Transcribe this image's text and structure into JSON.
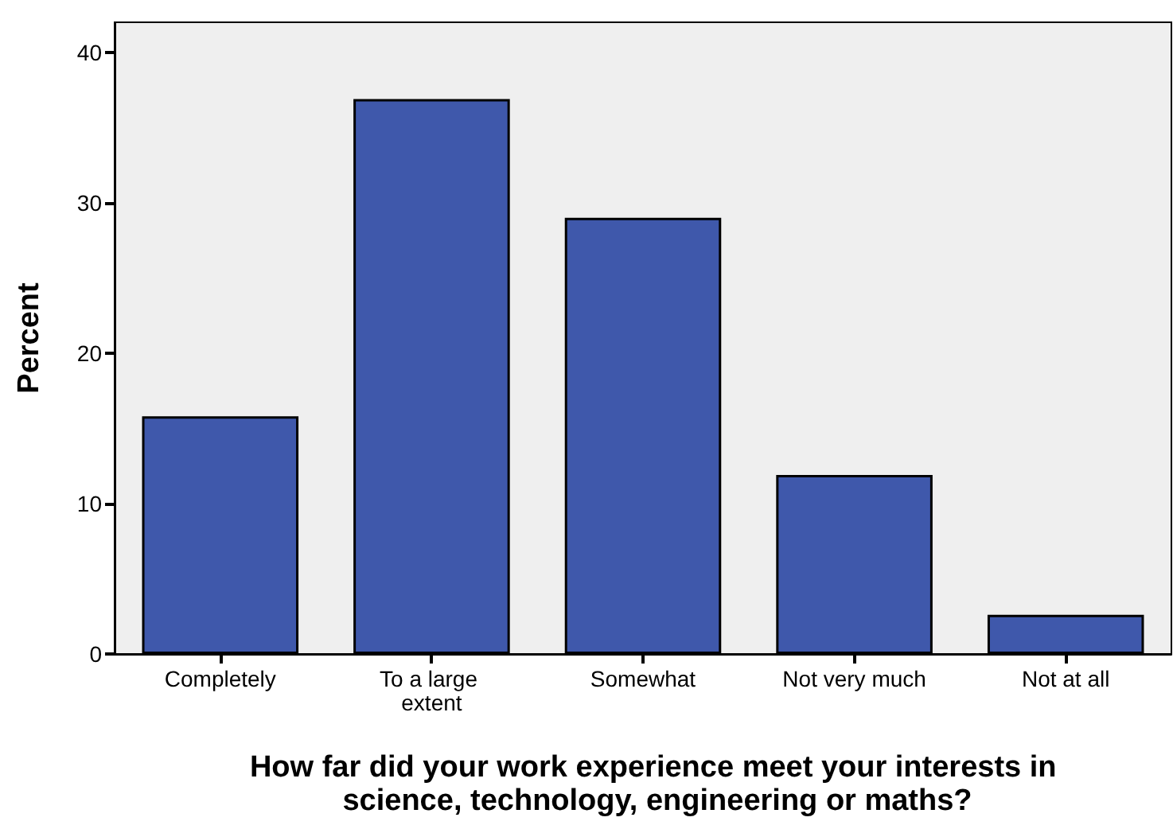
{
  "chart_data": {
    "type": "bar",
    "categories": [
      "Completely",
      "To a large extent",
      "Somewhat",
      "Not very much",
      "Not at all"
    ],
    "values": [
      15.8,
      36.9,
      29.0,
      11.9,
      2.6
    ],
    "color": "#3f58ab",
    "xlabel": "How far did your work experience meet your interests in science, technology, engineering or maths?",
    "ylabel": "Percent",
    "ylim": [
      0,
      42
    ],
    "yticks": [
      0,
      10,
      20,
      30,
      40
    ],
    "grid": false
  }
}
